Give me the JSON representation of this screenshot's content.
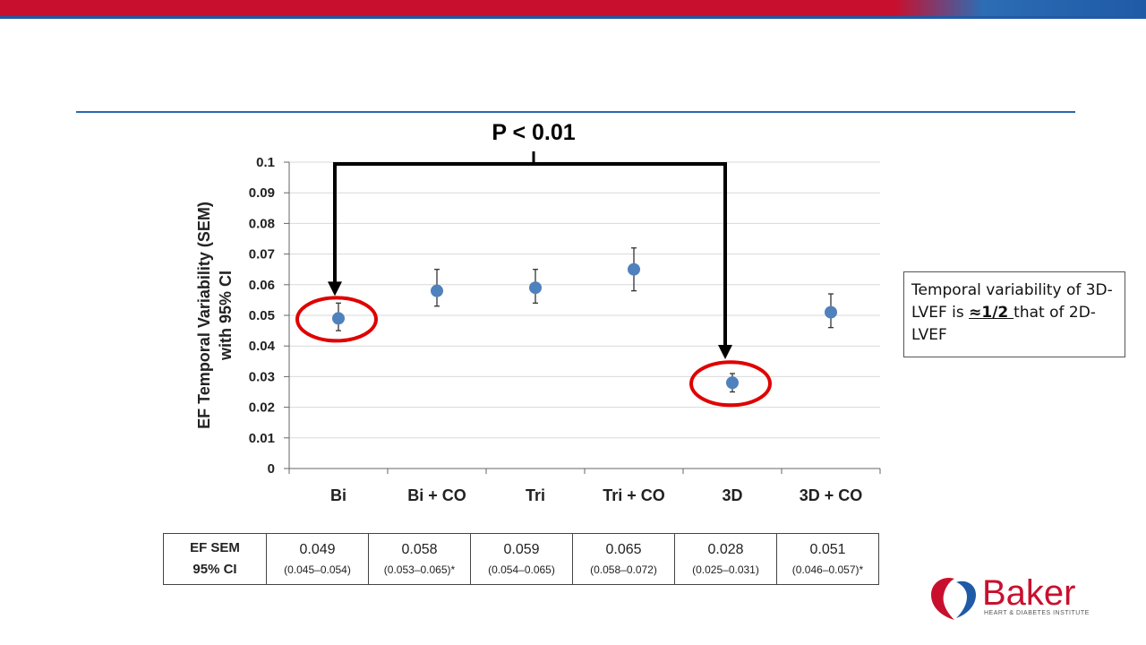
{
  "header": {
    "brand_colors": {
      "red": "#c8102e",
      "blue": "#1f5aa6"
    }
  },
  "chart_data": {
    "type": "scatter",
    "annotation": "P < 0.01",
    "ylabel_line1": "EF Temporal  Variability (SEM)",
    "ylabel_line2": "with 95% CI",
    "ylim": [
      0,
      0.1
    ],
    "yticks": [
      "0",
      "0.01",
      "0.02",
      "0.03",
      "0.04",
      "0.05",
      "0.06",
      "0.07",
      "0.08",
      "0.09",
      "0.1"
    ],
    "grid": true,
    "categories": [
      "Bi",
      "Bi + CO",
      "Tri",
      "Tri + CO",
      "3D",
      "3D + CO"
    ],
    "values": [
      0.049,
      0.058,
      0.059,
      0.065,
      0.028,
      0.051
    ],
    "ci_low": [
      0.045,
      0.053,
      0.054,
      0.058,
      0.025,
      0.046
    ],
    "ci_high": [
      0.054,
      0.065,
      0.065,
      0.072,
      0.031,
      0.057
    ],
    "highlighted": [
      "Bi",
      "3D"
    ],
    "marker_color": "#4f81bd",
    "highlight_color": "#e00000"
  },
  "callout": {
    "text_before": "Temporal variability of 3D-LVEF is ",
    "text_bold": "≈1/2 ",
    "text_after": "that of 2D-LVEF"
  },
  "table": {
    "header_line1": "EF SEM",
    "header_line2": "95% CI",
    "cells": [
      {
        "value": "0.049",
        "ci": "(0.045–0.054)"
      },
      {
        "value": "0.058",
        "ci": "(0.053–0.065)*"
      },
      {
        "value": "0.059",
        "ci": "(0.054–0.065)"
      },
      {
        "value": "0.065",
        "ci": "(0.058–0.072)"
      },
      {
        "value": "0.028",
        "ci": "(0.025–0.031)"
      },
      {
        "value": "0.051",
        "ci": "(0.046–0.057)*"
      }
    ]
  },
  "logo": {
    "name": "Baker",
    "subtitle": "HEART & DIABETES INSTITUTE"
  }
}
